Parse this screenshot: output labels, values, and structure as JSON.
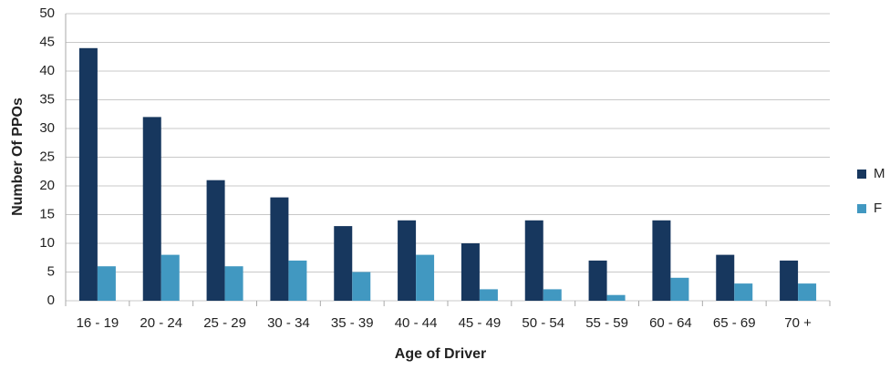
{
  "chart_data": {
    "type": "bar",
    "xlabel": "Age of Driver",
    "ylabel": "Number Of PPOs",
    "categories": [
      "16 - 19",
      "20 - 24",
      "25 - 29",
      "30 - 34",
      "35 - 39",
      "40 - 44",
      "45 - 49",
      "50 - 54",
      "55 - 59",
      "60 - 64",
      "65 - 69",
      "70 +"
    ],
    "series": [
      {
        "name": "M",
        "color": "#17375e",
        "values": [
          44,
          32,
          21,
          18,
          13,
          14,
          10,
          14,
          7,
          14,
          8,
          7
        ]
      },
      {
        "name": "F",
        "color": "#4198c1",
        "values": [
          6,
          8,
          6,
          7,
          5,
          8,
          2,
          2,
          1,
          4,
          3,
          3
        ]
      }
    ],
    "ylim": [
      0,
      50
    ],
    "yticks": [
      0,
      5,
      10,
      15,
      20,
      25,
      30,
      35,
      40,
      45,
      50
    ],
    "grid": true,
    "legend": "right"
  }
}
